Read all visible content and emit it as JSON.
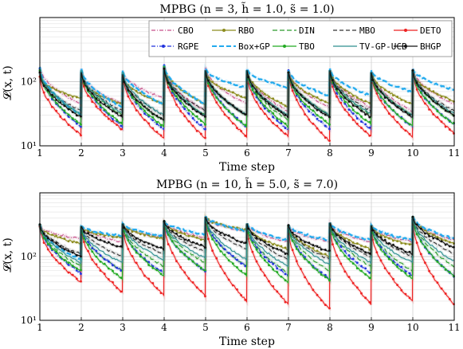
{
  "chart_data": [
    {
      "type": "line",
      "title": "MPBG (n = 3, h̃ = 1.0, s̃ = 1.0)",
      "xlabel": "Time step",
      "ylabel": "𝓛(x, t)",
      "yscale": "log",
      "xlim": [
        1,
        11
      ],
      "ylim": [
        10,
        1000
      ],
      "xticks": [
        "1",
        "2",
        "3",
        "4",
        "5",
        "6",
        "7",
        "8",
        "9",
        "10",
        "11"
      ],
      "yticks": [
        "10¹",
        "10²"
      ],
      "grid": true,
      "legend_position": "top",
      "series": [
        {
          "name": "CBO",
          "color": "#c7508a",
          "start": [
            170,
            140,
            145,
            175,
            170,
            150,
            150,
            150,
            140,
            160
          ],
          "end": [
            45,
            45,
            55,
            35,
            45,
            35,
            40,
            40,
            35,
            45
          ]
        },
        {
          "name": "RBO",
          "color": "#8c8c1e",
          "start": [
            120,
            110,
            120,
            170,
            140,
            150,
            140,
            150,
            140,
            140
          ],
          "end": [
            55,
            45,
            45,
            45,
            55,
            40,
            45,
            45,
            45,
            50
          ]
        },
        {
          "name": "DIN",
          "color": "#2a9a2a",
          "start": [
            150,
            150,
            120,
            160,
            150,
            150,
            140,
            150,
            140,
            150
          ],
          "end": [
            30,
            30,
            25,
            30,
            30,
            25,
            30,
            30,
            30,
            30
          ]
        },
        {
          "name": "MBO",
          "color": "#333333",
          "start": [
            140,
            140,
            130,
            160,
            150,
            150,
            140,
            150,
            140,
            150
          ],
          "end": [
            35,
            35,
            30,
            35,
            30,
            30,
            30,
            35,
            30,
            35
          ]
        },
        {
          "name": "DETO",
          "color": "#ee2222",
          "start": [
            120,
            130,
            130,
            170,
            150,
            130,
            140,
            140,
            140,
            140
          ],
          "end": [
            15,
            18,
            13,
            13,
            14,
            14,
            12,
            14,
            14,
            16
          ]
        },
        {
          "name": "RGPE",
          "color": "#2233dd",
          "start": [
            160,
            160,
            140,
            180,
            160,
            150,
            150,
            150,
            140,
            150
          ],
          "end": [
            20,
            20,
            18,
            18,
            20,
            18,
            18,
            18,
            20,
            22
          ]
        },
        {
          "name": "Box+GP",
          "color": "#22aaee",
          "start": [
            170,
            160,
            150,
            180,
            160,
            160,
            150,
            160,
            150,
            160
          ],
          "end": [
            30,
            40,
            45,
            45,
            80,
            80,
            60,
            60,
            70,
            75
          ]
        },
        {
          "name": "TBO",
          "color": "#22aa22",
          "start": [
            150,
            150,
            140,
            170,
            150,
            150,
            140,
            150,
            140,
            150
          ],
          "end": [
            22,
            22,
            20,
            22,
            20,
            20,
            22,
            22,
            20,
            22
          ]
        },
        {
          "name": "TV-GP-UCB",
          "color": "#2d8f8f",
          "start": [
            150,
            150,
            140,
            170,
            150,
            150,
            140,
            150,
            140,
            150
          ],
          "end": [
            32,
            32,
            30,
            30,
            30,
            30,
            30,
            32,
            30,
            32
          ]
        },
        {
          "name": "BHGP",
          "color": "#111111",
          "start": [
            140,
            140,
            130,
            160,
            150,
            150,
            140,
            150,
            140,
            150
          ],
          "end": [
            28,
            28,
            25,
            28,
            30,
            28,
            28,
            28,
            28,
            30
          ]
        }
      ]
    },
    {
      "type": "line",
      "title": "MPBG (n = 10, h̃ = 5.0, s̃ = 7.0)",
      "xlabel": "Time step",
      "ylabel": "𝓛(x, t)",
      "yscale": "log",
      "xlim": [
        1,
        11
      ],
      "ylim": [
        10,
        1000
      ],
      "xticks": [
        "1",
        "2",
        "3",
        "4",
        "5",
        "6",
        "7",
        "8",
        "9",
        "10",
        "11"
      ],
      "yticks": [
        "10¹",
        "10²"
      ],
      "grid": true,
      "series": [
        {
          "name": "CBO",
          "color": "#c7508a",
          "start": [
            300,
            300,
            300,
            350,
            400,
            320,
            300,
            330,
            300,
            400
          ],
          "end": [
            190,
            170,
            200,
            200,
            250,
            170,
            170,
            170,
            170,
            180
          ]
        },
        {
          "name": "RBO",
          "color": "#8c8c1e",
          "start": [
            300,
            280,
            320,
            350,
            420,
            320,
            300,
            330,
            300,
            420
          ],
          "end": [
            160,
            200,
            190,
            180,
            260,
            130,
            100,
            130,
            150,
            160
          ]
        },
        {
          "name": "DIN",
          "color": "#2a9a2a",
          "start": [
            320,
            300,
            330,
            360,
            420,
            330,
            310,
            340,
            310,
            420
          ],
          "end": [
            70,
            60,
            70,
            80,
            70,
            55,
            60,
            70,
            60,
            70
          ]
        },
        {
          "name": "MBO",
          "color": "#333333",
          "start": [
            320,
            300,
            330,
            360,
            420,
            330,
            310,
            340,
            310,
            420
          ],
          "end": [
            110,
            100,
            110,
            120,
            130,
            90,
            90,
            100,
            100,
            110
          ]
        },
        {
          "name": "DETO",
          "color": "#ee2222",
          "start": [
            300,
            280,
            300,
            340,
            380,
            300,
            280,
            300,
            280,
            380
          ],
          "end": [
            40,
            28,
            25,
            24,
            20,
            18,
            15,
            18,
            20,
            18
          ]
        },
        {
          "name": "RGPE",
          "color": "#2233dd",
          "start": [
            320,
            300,
            320,
            360,
            420,
            330,
            310,
            340,
            310,
            420
          ],
          "end": [
            55,
            60,
            55,
            60,
            70,
            50,
            45,
            55,
            50,
            50
          ]
        },
        {
          "name": "Box+GP",
          "color": "#22aaee",
          "start": [
            320,
            300,
            330,
            360,
            430,
            330,
            310,
            340,
            310,
            430
          ],
          "end": [
            90,
            210,
            210,
            220,
            250,
            180,
            180,
            180,
            180,
            190
          ]
        },
        {
          "name": "TBO",
          "color": "#22aa22",
          "start": [
            320,
            300,
            330,
            360,
            420,
            330,
            310,
            340,
            310,
            420
          ],
          "end": [
            60,
            45,
            50,
            60,
            50,
            40,
            42,
            45,
            45,
            50
          ]
        },
        {
          "name": "TV-GP-UCB",
          "color": "#2d8f8f",
          "start": [
            320,
            300,
            330,
            360,
            420,
            330,
            310,
            340,
            310,
            420
          ],
          "end": [
            80,
            80,
            90,
            95,
            90,
            70,
            75,
            80,
            80,
            85
          ]
        },
        {
          "name": "BHGP",
          "color": "#111111",
          "start": [
            320,
            300,
            330,
            360,
            420,
            330,
            310,
            340,
            310,
            420
          ],
          "end": [
            100,
            140,
            130,
            140,
            160,
            110,
            120,
            110,
            110,
            140
          ]
        }
      ]
    }
  ]
}
